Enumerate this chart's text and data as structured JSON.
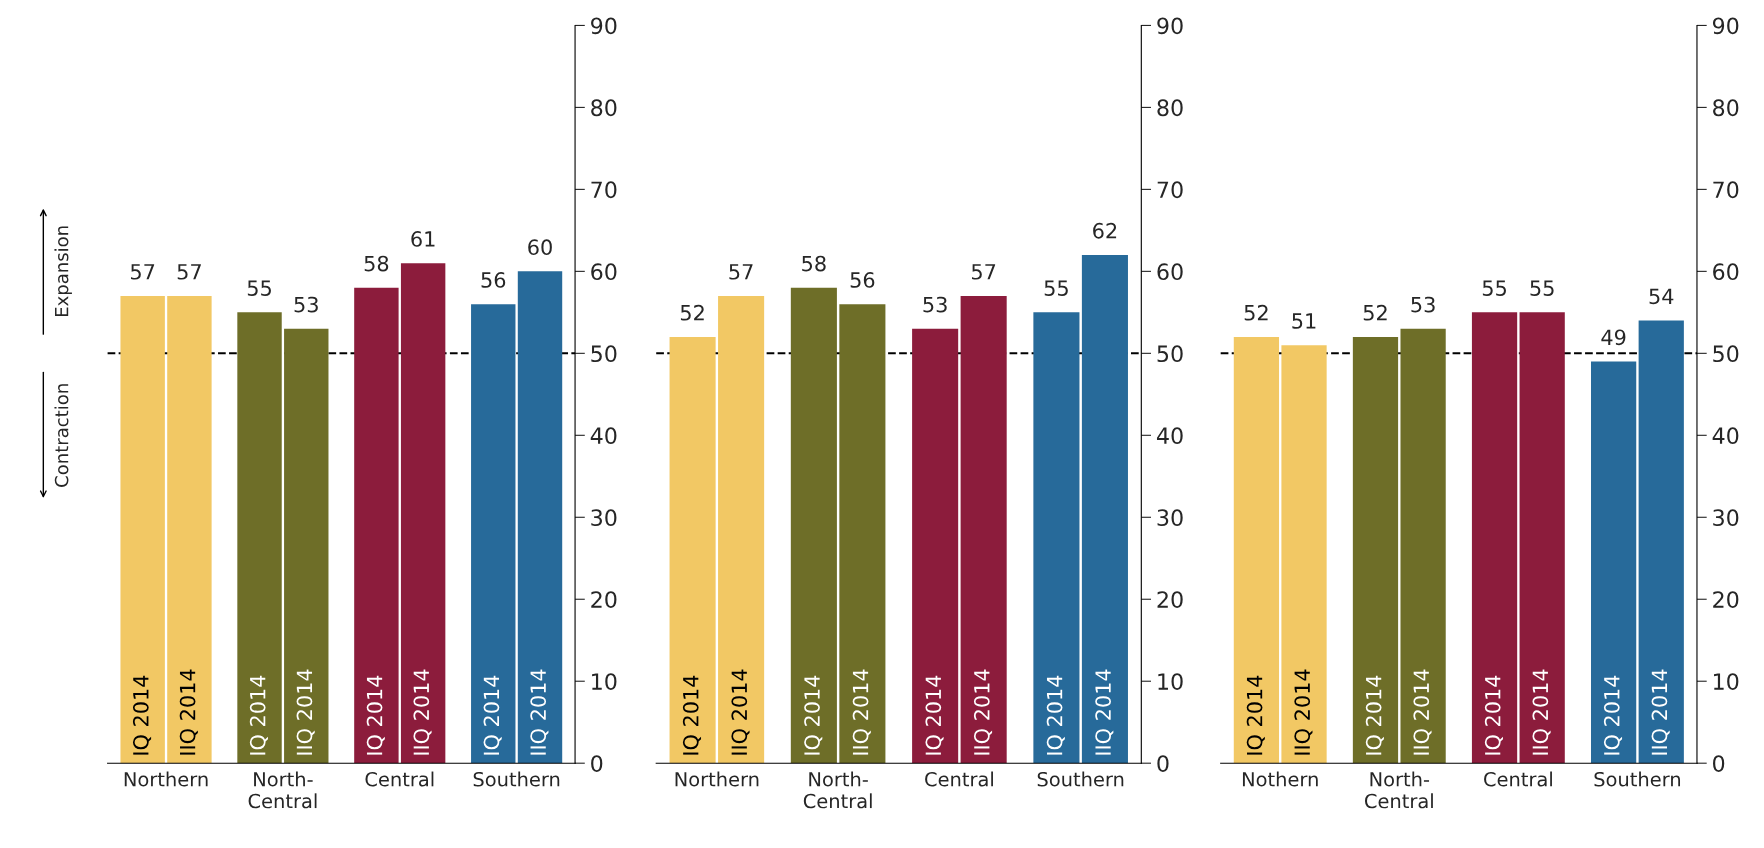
{
  "chart_data": [
    {
      "type": "bar",
      "categories": [
        "Northern",
        "North-\nCentral",
        "Central",
        "Southern"
      ],
      "series": [
        {
          "name": "IQ 2014",
          "colors": [
            "#f2c864",
            "#6e6e28",
            "#8c1c3c",
            "#276a9a"
          ],
          "values": [
            57,
            55,
            58,
            56
          ]
        },
        {
          "name": "IIQ 2014",
          "colors": [
            "#f2c864",
            "#6e6e28",
            "#8c1c3c",
            "#276a9a"
          ],
          "values": [
            57,
            53,
            61,
            60
          ]
        }
      ],
      "ylim": [
        0,
        90
      ],
      "yticks": [
        0,
        10,
        20,
        30,
        40,
        50,
        60,
        70,
        80,
        90
      ],
      "data_labels": true,
      "grid": false,
      "legend": false,
      "ref_lines": [
        {
          "axis": "y",
          "value": 50,
          "line_style": "dashed",
          "color": "#000000"
        }
      ],
      "annotations": [
        "Expansion",
        "Contraction"
      ]
    },
    {
      "type": "bar",
      "categories": [
        "Northern",
        "North-\nCentral",
        "Central",
        "Southern"
      ],
      "series": [
        {
          "name": "IQ 2014",
          "colors": [
            "#f2c864",
            "#6e6e28",
            "#8c1c3c",
            "#276a9a"
          ],
          "values": [
            52,
            58,
            53,
            55
          ]
        },
        {
          "name": "IIQ 2014",
          "colors": [
            "#f2c864",
            "#6e6e28",
            "#8c1c3c",
            "#276a9a"
          ],
          "values": [
            57,
            56,
            57,
            62
          ]
        }
      ],
      "ylim": [
        0,
        90
      ],
      "yticks": [
        0,
        10,
        20,
        30,
        40,
        50,
        60,
        70,
        80,
        90
      ],
      "data_labels": true,
      "grid": false,
      "legend": false,
      "ref_lines": [
        {
          "axis": "y",
          "value": 50,
          "line_style": "dashed",
          "color": "#000000"
        }
      ]
    },
    {
      "type": "bar",
      "categories": [
        "Nothern",
        "North-\nCentral",
        "Central",
        "Southern"
      ],
      "series": [
        {
          "name": "IQ 2014",
          "colors": [
            "#f2c864",
            "#6e6e28",
            "#8c1c3c",
            "#276a9a"
          ],
          "values": [
            52,
            52,
            55,
            49
          ]
        },
        {
          "name": "IIQ 2014",
          "colors": [
            "#f2c864",
            "#6e6e28",
            "#8c1c3c",
            "#276a9a"
          ],
          "values": [
            51,
            53,
            55,
            54
          ]
        }
      ],
      "ylim": [
        0,
        90
      ],
      "yticks": [
        0,
        10,
        20,
        30,
        40,
        50,
        60,
        70,
        80,
        90
      ],
      "data_labels": true,
      "grid": false,
      "legend": false,
      "ref_lines": [
        {
          "axis": "y",
          "value": 50,
          "line_style": "dashed",
          "color": "#000000"
        }
      ]
    }
  ]
}
